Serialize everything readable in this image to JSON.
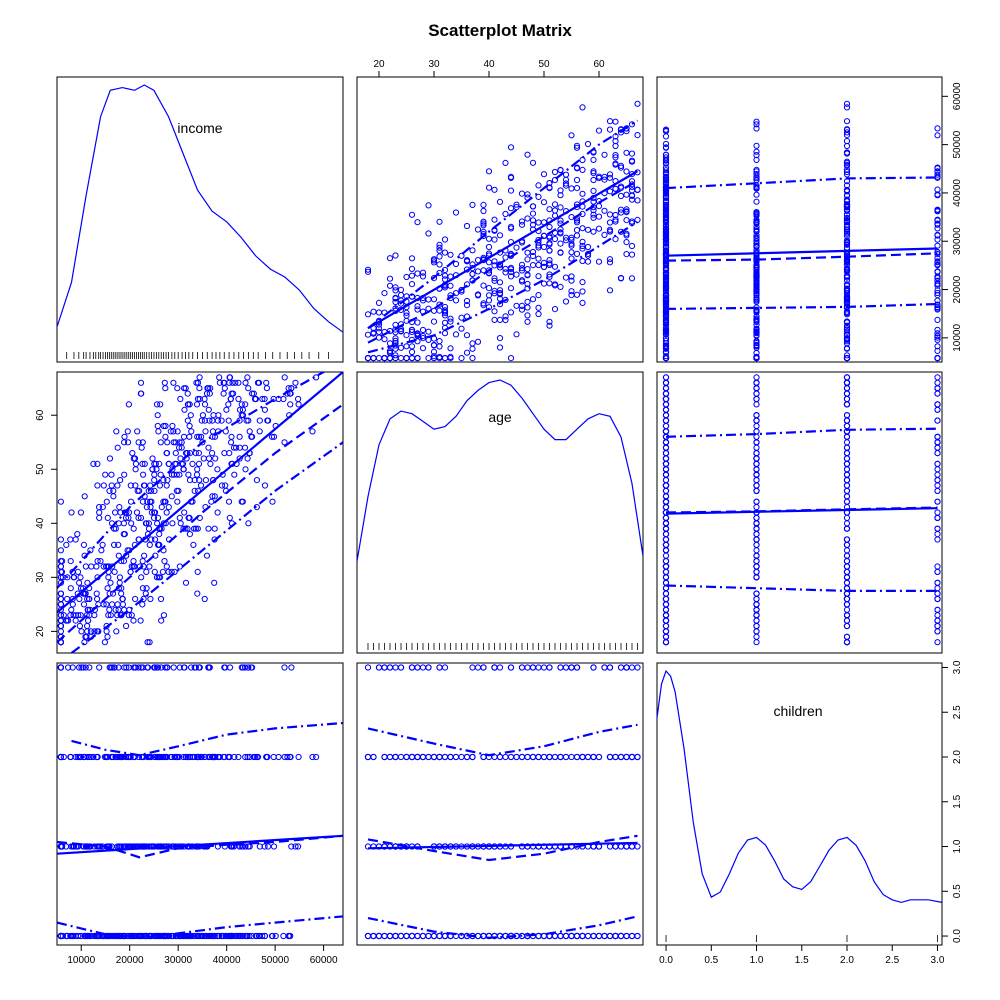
{
  "chart_data": {
    "type": "scatter",
    "title": "Scatterplot Matrix",
    "variables": [
      {
        "name": "income",
        "label": "income",
        "range": [
          5000,
          64000
        ],
        "ticks": [
          10000,
          20000,
          30000,
          40000,
          50000,
          60000
        ],
        "tick_labels": [
          "10000",
          "20000",
          "30000",
          "40000",
          "50000",
          "60000"
        ]
      },
      {
        "name": "age",
        "label": "age",
        "range": [
          16,
          68
        ],
        "ticks": [
          20,
          30,
          40,
          50,
          60
        ],
        "tick_labels": [
          "20",
          "30",
          "40",
          "50",
          "60"
        ]
      },
      {
        "name": "children",
        "label": "children",
        "range": [
          -0.1,
          3.05
        ],
        "ticks": [
          0,
          0.5,
          1,
          1.5,
          2,
          2.5,
          3
        ],
        "tick_labels": [
          "0.0",
          "0.5",
          "1.0",
          "1.5",
          "2.0",
          "2.5",
          "3.0"
        ]
      }
    ],
    "colors": {
      "points": "#0000ff",
      "lines": "#0000ff",
      "frame": "#000000",
      "rug": "#000000"
    },
    "diagonal": "density",
    "densities": {
      "income": {
        "ymax": 1.0,
        "x": [
          5000,
          8000,
          11000,
          14000,
          16000,
          18500,
          21000,
          23000,
          25000,
          28000,
          31000,
          34000,
          37000,
          40000,
          43000,
          46000,
          49000,
          52000,
          55000,
          58000,
          61000,
          64000
        ],
        "y": [
          0.08,
          0.25,
          0.58,
          0.88,
          0.98,
          0.99,
          0.98,
          1.0,
          0.98,
          0.88,
          0.74,
          0.6,
          0.52,
          0.48,
          0.42,
          0.35,
          0.3,
          0.27,
          0.22,
          0.15,
          0.1,
          0.06
        ]
      },
      "age": {
        "ymax": 1.0,
        "x": [
          16,
          18,
          20,
          22,
          24,
          26,
          28,
          30,
          32,
          34,
          36,
          38,
          40,
          42,
          44,
          46,
          48,
          50,
          52,
          54,
          56,
          58,
          60,
          62,
          64,
          66,
          68
        ],
        "y": [
          0.3,
          0.55,
          0.75,
          0.85,
          0.88,
          0.87,
          0.84,
          0.81,
          0.82,
          0.86,
          0.92,
          0.96,
          0.99,
          1.0,
          0.98,
          0.93,
          0.87,
          0.81,
          0.77,
          0.77,
          0.81,
          0.85,
          0.87,
          0.86,
          0.78,
          0.6,
          0.32
        ]
      },
      "children": {
        "ymax": 1.0,
        "x": [
          -0.1,
          -0.05,
          0,
          0.05,
          0.1,
          0.2,
          0.3,
          0.4,
          0.5,
          0.6,
          0.7,
          0.8,
          0.9,
          1.0,
          1.1,
          1.2,
          1.3,
          1.4,
          1.5,
          1.6,
          1.7,
          1.8,
          1.9,
          2.0,
          2.1,
          2.2,
          2.3,
          2.4,
          2.5,
          2.6,
          2.7,
          2.8,
          2.9,
          3.05
        ],
        "y": [
          0.82,
          0.95,
          1.0,
          0.98,
          0.92,
          0.7,
          0.42,
          0.22,
          0.13,
          0.15,
          0.22,
          0.3,
          0.35,
          0.36,
          0.33,
          0.27,
          0.2,
          0.17,
          0.16,
          0.19,
          0.25,
          0.31,
          0.35,
          0.36,
          0.33,
          0.27,
          0.19,
          0.14,
          0.12,
          0.11,
          0.12,
          0.12,
          0.12,
          0.11
        ]
      }
    },
    "rugs": {
      "income": [
        7000,
        8500,
        9500,
        10500,
        11000,
        11800,
        12500,
        13000,
        13600,
        14000,
        14500,
        15000,
        15400,
        15800,
        16200,
        16600,
        17000,
        17400,
        17800,
        18200,
        18600,
        19000,
        19400,
        19800,
        20200,
        20600,
        21000,
        21400,
        21800,
        22200,
        22600,
        23000,
        23500,
        24000,
        24500,
        25000,
        25500,
        26000,
        26500,
        27000,
        27500,
        28000,
        28700,
        29300,
        30000,
        30800,
        31500,
        32200,
        33000,
        34000,
        35000,
        36000,
        37000,
        37800,
        38600,
        39500,
        40500,
        41500,
        42500,
        43500,
        44500,
        45500,
        46500,
        48000,
        49500,
        51000,
        52500,
        54000,
        55500,
        57000,
        59000,
        61000
      ],
      "age": [
        18,
        19,
        20,
        21,
        22,
        23,
        24,
        25,
        26,
        27,
        28,
        29,
        30,
        31,
        32,
        33,
        34,
        35,
        36,
        37,
        38,
        39,
        40,
        41,
        42,
        43,
        44,
        45,
        46,
        47,
        48,
        49,
        50,
        51,
        52,
        53,
        54,
        55,
        56,
        57,
        58,
        59,
        60,
        61,
        62,
        63,
        64,
        65,
        66,
        67
      ],
      "children": [
        0,
        1,
        2,
        3
      ]
    },
    "pair_lines": {
      "age_vs_income": {
        "fit": {
          "x": [
            5000,
            64000
          ],
          "y": [
            23.5,
            68
          ]
        },
        "smooth": {
          "x": [
            5000,
            20000,
            35000,
            50000,
            64000
          ],
          "y": [
            18,
            30,
            42,
            53,
            62
          ]
        },
        "upper": {
          "x": [
            5000,
            20000,
            35000,
            50000,
            64000
          ],
          "y": [
            28,
            43,
            55,
            63,
            70
          ]
        },
        "lower": {
          "x": [
            8000,
            20000,
            35000,
            50000,
            64000
          ],
          "y": [
            16,
            24,
            35,
            46,
            55
          ]
        }
      },
      "income_vs_age": {
        "fit": {
          "x": [
            18,
            67
          ],
          "y": [
            12000,
            44500
          ]
        },
        "smooth": {
          "x": [
            18,
            30,
            40,
            50,
            60,
            67
          ],
          "y": [
            9000,
            16000,
            24000,
            31000,
            38000,
            42500
          ]
        },
        "upper": {
          "x": [
            18,
            30,
            40,
            50,
            60,
            67
          ],
          "y": [
            12000,
            22500,
            32000,
            41000,
            50000,
            55000
          ]
        },
        "lower": {
          "x": [
            18,
            30,
            40,
            50,
            60,
            67
          ],
          "y": [
            7000,
            10500,
            16000,
            22000,
            29000,
            34000
          ]
        }
      },
      "income_vs_children": {
        "fit": {
          "x": [
            0,
            3
          ],
          "y": [
            27000,
            28500
          ]
        },
        "smooth": {
          "x": [
            0,
            1,
            2,
            3
          ],
          "y": [
            26000,
            26200,
            26800,
            27500
          ]
        },
        "upper": {
          "x": [
            0,
            1,
            2,
            3
          ],
          "y": [
            41000,
            42000,
            43000,
            43200
          ]
        },
        "lower": {
          "x": [
            0,
            1,
            2,
            3
          ],
          "y": [
            16000,
            16200,
            16400,
            17000
          ]
        }
      },
      "age_vs_children": {
        "fit": {
          "x": [
            0,
            3
          ],
          "y": [
            41.8,
            42.8
          ]
        },
        "smooth": {
          "x": [
            0,
            1,
            2,
            3
          ],
          "y": [
            42.0,
            42.2,
            42.6,
            42.9
          ]
        },
        "upper": {
          "x": [
            0,
            1,
            2,
            3
          ],
          "y": [
            56,
            56.5,
            57.3,
            57.5
          ]
        },
        "lower": {
          "x": [
            0,
            1,
            2,
            3
          ],
          "y": [
            28.5,
            28,
            27.5,
            27.5
          ]
        }
      },
      "children_vs_income": {
        "fit": {
          "x": [
            5000,
            64000
          ],
          "y": [
            0.92,
            1.12
          ]
        },
        "smooth": {
          "x": [
            5000,
            15000,
            22000,
            30000,
            40000,
            50000,
            64000
          ],
          "y": [
            1.05,
            1.0,
            0.88,
            0.98,
            1.02,
            1.05,
            1.12
          ]
        },
        "upper": {
          "x": [
            8000,
            15000,
            22000,
            30000,
            40000,
            50000,
            64000
          ],
          "y": [
            2.18,
            2.08,
            2.02,
            2.12,
            2.25,
            2.32,
            2.38
          ]
        },
        "lower": {
          "x": [
            5000,
            15000,
            22000,
            30000,
            40000,
            50000,
            64000
          ],
          "y": [
            0.15,
            0.02,
            -0.02,
            0.03,
            0.1,
            0.15,
            0.22
          ]
        }
      },
      "children_vs_age": {
        "fit": {
          "x": [
            18,
            67
          ],
          "y": [
            0.98,
            1.04
          ]
        },
        "smooth": {
          "x": [
            18,
            30,
            40,
            50,
            60,
            67
          ],
          "y": [
            1.08,
            0.95,
            0.85,
            0.92,
            1.05,
            1.12
          ]
        },
        "upper": {
          "x": [
            18,
            30,
            40,
            50,
            60,
            67
          ],
          "y": [
            2.32,
            2.15,
            2.02,
            2.12,
            2.28,
            2.36
          ]
        },
        "lower": {
          "x": [
            18,
            30,
            40,
            50,
            60,
            67
          ],
          "y": [
            0.2,
            0.05,
            -0.02,
            0.02,
            0.12,
            0.22
          ]
        }
      }
    }
  }
}
